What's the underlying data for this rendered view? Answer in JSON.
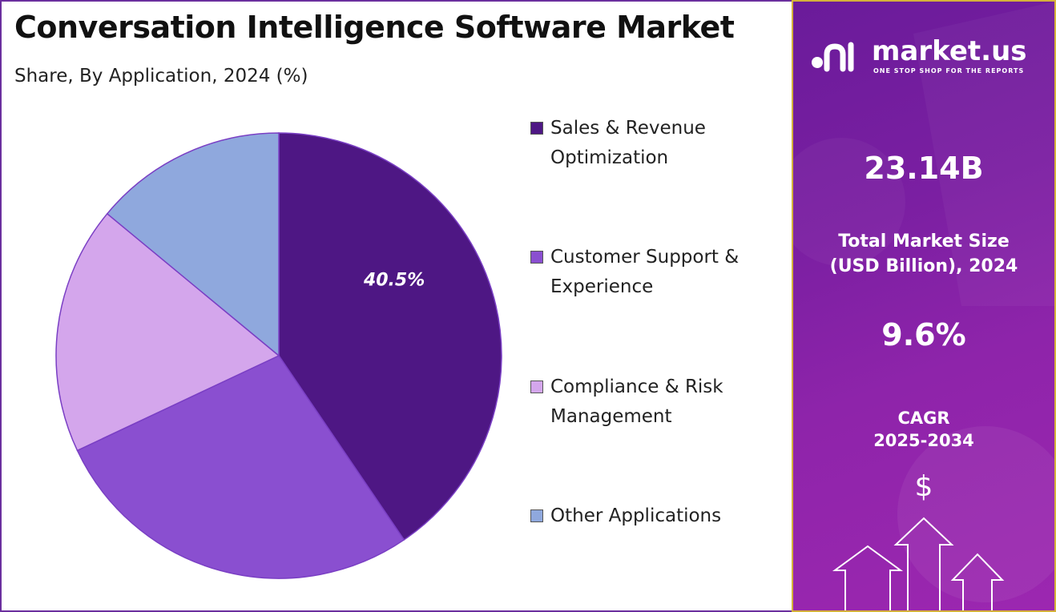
{
  "title": "Conversation Intelligence Software Market",
  "subtitle": "Share, By Application, 2024 (%)",
  "chart_data": {
    "type": "pie",
    "title": "Conversation Intelligence Software Market",
    "subtitle": "Share, By Application, 2024 (%)",
    "categories": [
      "Sales & Revenue Optimization",
      "Customer Support & Experience",
      "Compliance & Risk Management",
      "Other Applications"
    ],
    "values": [
      40.5,
      27.5,
      18.0,
      14.0
    ],
    "colors": [
      "#4e1784",
      "#8a4fd0",
      "#d4a6ec",
      "#8fa8dd"
    ],
    "data_labels": [
      "40.5%",
      "",
      "",
      ""
    ],
    "legend_position": "right"
  },
  "legend": [
    {
      "label": "Sales & Revenue Optimization",
      "color": "#4e1784"
    },
    {
      "label": "Customer Support & Experience",
      "color": "#8a4fd0"
    },
    {
      "label": "Compliance & Risk Management",
      "color": "#d4a6ec"
    },
    {
      "label": "Other Applications",
      "color": "#8fa8dd"
    }
  ],
  "panel": {
    "brand": "market.us",
    "tagline": "ONE STOP SHOP FOR THE REPORTS",
    "market_size_value": "23.14B",
    "market_size_label_line1": "Total Market Size",
    "market_size_label_line2": "(USD Billion), 2024",
    "cagr_value": "9.6%",
    "cagr_label_line1": "CAGR",
    "cagr_label_line2": "2025-2034",
    "currency_symbol": "$"
  }
}
